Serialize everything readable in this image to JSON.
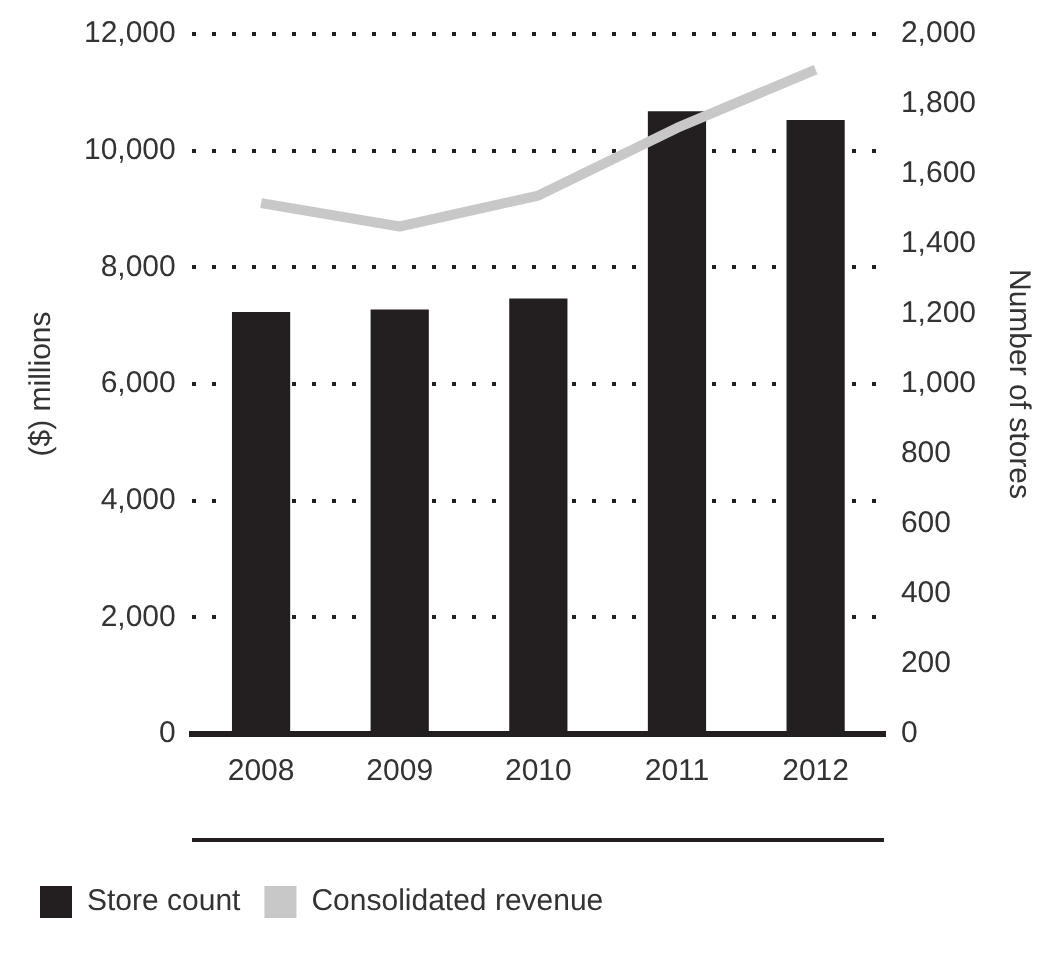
{
  "chart_data": {
    "type": "bar",
    "ylabel": "($) millions",
    "y2label": "Number of stores",
    "categories": [
      "2008",
      "2009",
      "2010",
      "2011",
      "2012"
    ],
    "series": [
      {
        "name": "Store count",
        "axis": "y2",
        "color": "#231f20",
        "values": [
          1206,
          1213,
          1244,
          1779,
          1754
        ]
      },
      {
        "name": "Consolidated revenue",
        "type": "line",
        "axis": "y",
        "color": "#c8c8c8",
        "values": [
          9100,
          8700,
          9230,
          10390,
          11390
        ]
      }
    ],
    "ylim": [
      0,
      12000
    ],
    "yticks": [
      {
        "value": 0,
        "label": "0"
      },
      {
        "value": 2000,
        "label": "2,000"
      },
      {
        "value": 4000,
        "label": "4,000"
      },
      {
        "value": 6000,
        "label": "6,000"
      },
      {
        "value": 8000,
        "label": "8,000"
      },
      {
        "value": 10000,
        "label": "10,000"
      },
      {
        "value": 12000,
        "label": "12,000"
      }
    ],
    "y2lim": [
      0,
      2000
    ],
    "y2ticks": [
      0,
      200,
      400,
      600,
      800,
      {
        "value": 1000,
        "label": "1,000"
      },
      {
        "value": 1200,
        "label": "1,200"
      },
      {
        "value": 1400,
        "label": "1,400"
      },
      {
        "value": 1600,
        "label": "1,600"
      },
      {
        "value": 1800,
        "label": "1,800"
      },
      {
        "value": 2000,
        "label": "2,000"
      }
    ],
    "grid": "y",
    "legend": "bottom left",
    "marker": "none"
  }
}
